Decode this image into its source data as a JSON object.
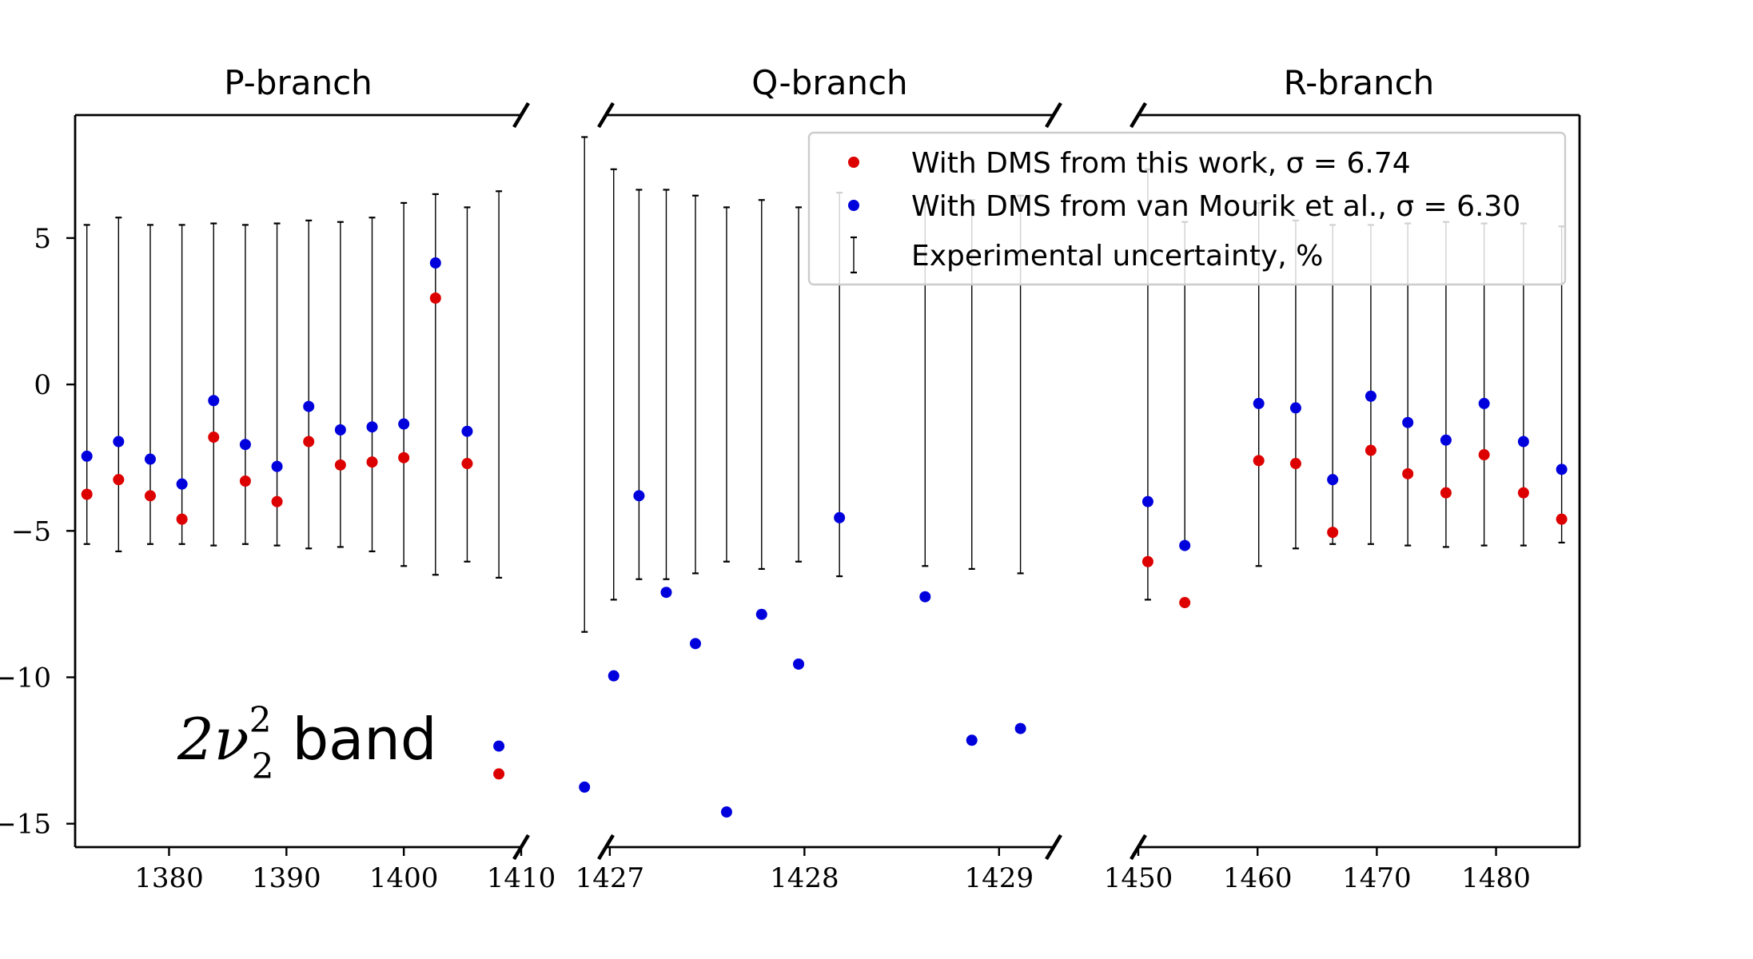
{
  "chart_data": {
    "type": "scatter",
    "ylim": [
      -15.8,
      9.2
    ],
    "yticks": [
      5,
      0,
      -5,
      -10,
      -15
    ],
    "ytick_labels": [
      "5",
      "0",
      "−5",
      "−10",
      "−15"
    ],
    "band_label": {
      "main": "2ν",
      "sup": "2",
      "sub": "2",
      "rest": " band"
    },
    "legend": {
      "entries": [
        {
          "label": "With DMS from this work, σ = 6.74",
          "color": "#dd0000",
          "marker": "dot"
        },
        {
          "label": "With DMS from van Mourik et al., σ = 6.30",
          "color": "#0000dd",
          "marker": "dot"
        },
        {
          "label": "Experimental uncertainty, %",
          "color": "#000000",
          "marker": "errorbar"
        }
      ]
    },
    "panels": [
      {
        "title": "P-branch",
        "xlim": [
          1372,
          1410
        ],
        "xticks": [
          1380,
          1390,
          1400,
          1410
        ],
        "xtick_labels": [
          "1380",
          "1390",
          "1400",
          "1410"
        ],
        "points": [
          {
            "x": 1373.0,
            "this_work": -3.75,
            "van_mourik": -2.45,
            "unc": 5.45
          },
          {
            "x": 1375.7,
            "this_work": -3.25,
            "van_mourik": -1.95,
            "unc": 5.7
          },
          {
            "x": 1378.4,
            "this_work": -3.8,
            "van_mourik": -2.55,
            "unc": 5.45
          },
          {
            "x": 1381.1,
            "this_work": -4.6,
            "van_mourik": -3.4,
            "unc": 5.45
          },
          {
            "x": 1383.8,
            "this_work": -1.8,
            "van_mourik": -0.55,
            "unc": 5.5
          },
          {
            "x": 1386.5,
            "this_work": -3.3,
            "van_mourik": -2.05,
            "unc": 5.45
          },
          {
            "x": 1389.2,
            "this_work": -4.0,
            "van_mourik": -2.8,
            "unc": 5.5
          },
          {
            "x": 1391.9,
            "this_work": -1.95,
            "van_mourik": -0.75,
            "unc": 5.6
          },
          {
            "x": 1394.6,
            "this_work": -2.75,
            "van_mourik": -1.55,
            "unc": 5.55
          },
          {
            "x": 1397.3,
            "this_work": -2.65,
            "van_mourik": -1.45,
            "unc": 5.7
          },
          {
            "x": 1400.0,
            "this_work": -2.5,
            "van_mourik": -1.35,
            "unc": 6.2
          },
          {
            "x": 1402.7,
            "this_work": 2.95,
            "van_mourik": 4.15,
            "unc": 6.5
          },
          {
            "x": 1405.4,
            "this_work": -2.7,
            "van_mourik": -1.6,
            "unc": 6.05
          },
          {
            "x": 1408.1,
            "this_work": -13.3,
            "van_mourik": -12.35,
            "unc": 6.6
          }
        ]
      },
      {
        "title": "Q-branch",
        "xlim": [
          1426.98,
          1429.28
        ],
        "xticks": [
          1427,
          1428,
          1429
        ],
        "xtick_labels": [
          "1427",
          "1428",
          "1429"
        ],
        "points": [
          {
            "x": 1426.87,
            "this_work": null,
            "van_mourik": -13.75,
            "unc": 8.45
          },
          {
            "x": 1427.02,
            "this_work": null,
            "van_mourik": -9.95,
            "unc": 7.35
          },
          {
            "x": 1427.15,
            "this_work": null,
            "van_mourik": -3.8,
            "unc": 6.65
          },
          {
            "x": 1427.29,
            "this_work": null,
            "van_mourik": -7.1,
            "unc": 6.65
          },
          {
            "x": 1427.44,
            "this_work": null,
            "van_mourik": -8.85,
            "unc": 6.45
          },
          {
            "x": 1427.6,
            "this_work": null,
            "van_mourik": -14.6,
            "unc": 6.05
          },
          {
            "x": 1427.78,
            "this_work": null,
            "van_mourik": -7.85,
            "unc": 6.3
          },
          {
            "x": 1427.97,
            "this_work": null,
            "van_mourik": -9.55,
            "unc": 6.05
          },
          {
            "x": 1428.18,
            "this_work": null,
            "van_mourik": -4.55,
            "unc": 6.55
          },
          {
            "x": 1428.62,
            "this_work": null,
            "van_mourik": -7.25,
            "unc": 6.2
          },
          {
            "x": 1428.86,
            "this_work": null,
            "van_mourik": -12.15,
            "unc": 6.3
          },
          {
            "x": 1429.11,
            "this_work": null,
            "van_mourik": -11.75,
            "unc": 6.45
          }
        ]
      },
      {
        "title": "R-branch",
        "xlim": [
          1450,
          1487
        ],
        "xticks": [
          1450,
          1460,
          1470,
          1480
        ],
        "xtick_labels": [
          "1450",
          "1460",
          "1470",
          "1480"
        ],
        "points": [
          {
            "x": 1450.8,
            "this_work": -6.05,
            "van_mourik": -4.0,
            "unc": 7.35
          },
          {
            "x": 1453.9,
            "this_work": -7.45,
            "van_mourik": -5.5,
            "unc": 5.55
          },
          {
            "x": 1460.1,
            "this_work": -2.6,
            "van_mourik": -0.65,
            "unc": 6.2
          },
          {
            "x": 1463.2,
            "this_work": -2.7,
            "van_mourik": -0.8,
            "unc": 5.6
          },
          {
            "x": 1466.3,
            "this_work": -5.05,
            "van_mourik": -3.25,
            "unc": 5.45
          },
          {
            "x": 1469.5,
            "this_work": -2.25,
            "van_mourik": -0.4,
            "unc": 5.45
          },
          {
            "x": 1472.6,
            "this_work": -3.05,
            "van_mourik": -1.3,
            "unc": 5.5
          },
          {
            "x": 1475.8,
            "this_work": -3.7,
            "van_mourik": -1.9,
            "unc": 5.55
          },
          {
            "x": 1479.0,
            "this_work": -2.4,
            "van_mourik": -0.65,
            "unc": 5.5
          },
          {
            "x": 1482.3,
            "this_work": -3.7,
            "van_mourik": -1.95,
            "unc": 5.5
          },
          {
            "x": 1485.5,
            "this_work": -4.6,
            "van_mourik": -2.9,
            "unc": 5.4
          }
        ]
      }
    ]
  }
}
